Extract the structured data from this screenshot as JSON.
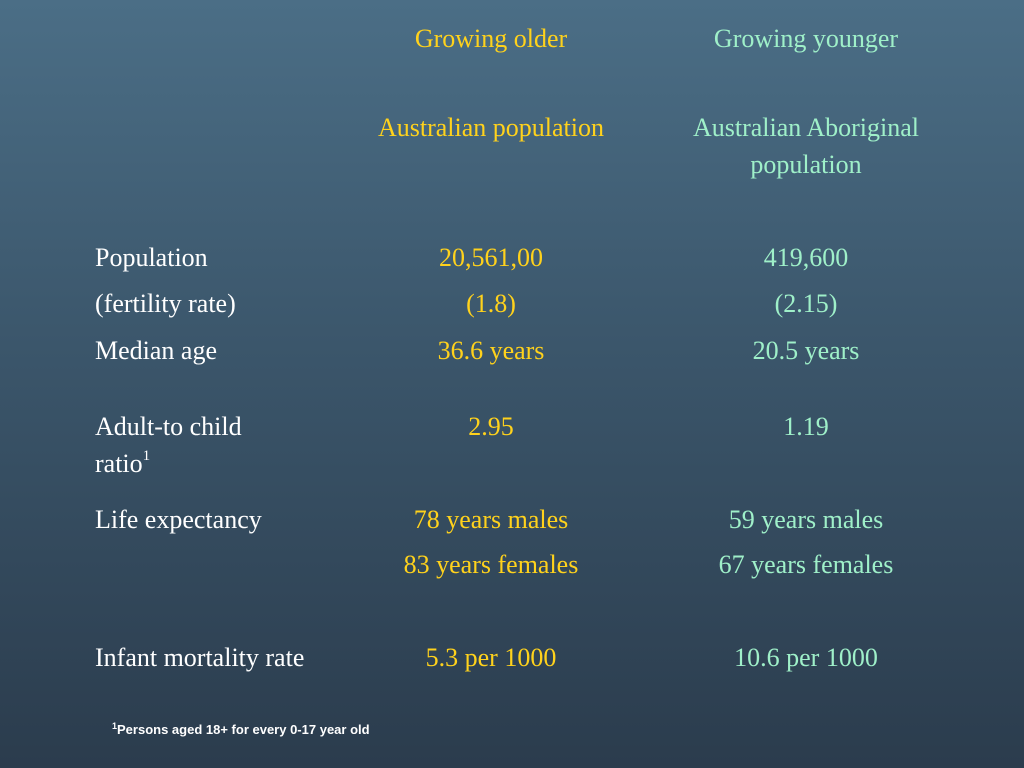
{
  "header": {
    "col2_heading": "Growing older",
    "col3_heading": "Growing younger",
    "col2_subheading": "Australian population",
    "col3_subheading": "Australian Aboriginal population"
  },
  "rows": {
    "population": {
      "label": "Population",
      "col2": "20,561,00",
      "col3": "419,600"
    },
    "fertility": {
      "label": "(fertility rate)",
      "col2": "(1.8)",
      "col3": "(2.15)"
    },
    "median_age": {
      "label": "Median age",
      "col2": "36.6 years",
      "col3": "20.5 years"
    },
    "adult_child": {
      "label": "Adult-to child ratio",
      "label_sup": "1",
      "col2": "2.95",
      "col3": "1.19"
    },
    "life_expectancy": {
      "label": "Life expectancy",
      "col2_males": "78 years males",
      "col2_females": "83 years females",
      "col3_males": "59 years males",
      "col3_females": "67 years females"
    },
    "infant_mortality": {
      "label": "Infant mortality rate",
      "col2": "5.3 per 1000",
      "col3": "10.6 per 1000"
    }
  },
  "footnote": {
    "marker": "1",
    "text": "Persons aged 18+ for every 0-17 year old"
  },
  "colors": {
    "col2_text": "#ffd21c",
    "col3_text": "#9ff0c9",
    "label_text": "#ffffff"
  }
}
